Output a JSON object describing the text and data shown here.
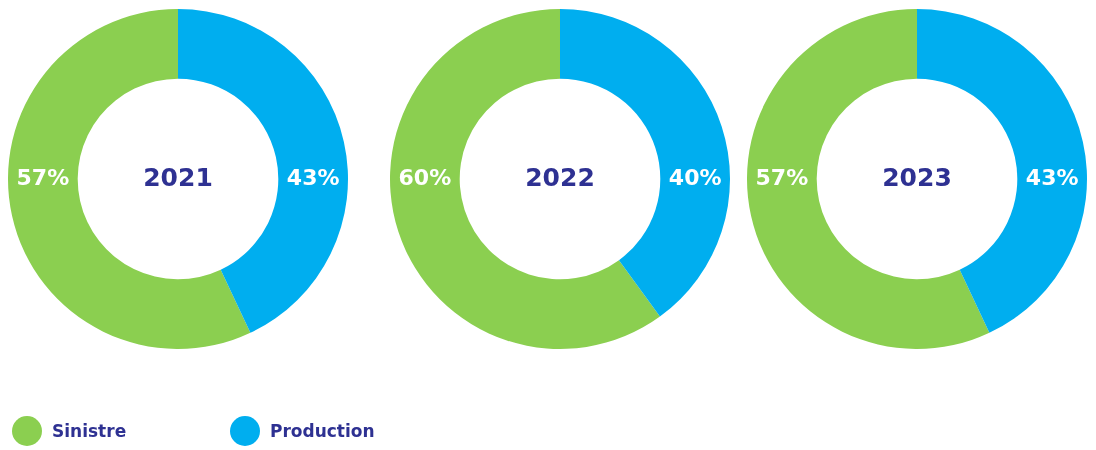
{
  "chart_data": [
    {
      "type": "donut",
      "title": "2021",
      "categories": [
        "Sinistre",
        "Production"
      ],
      "values": [
        57,
        43
      ],
      "colors": [
        "#8bcf50",
        "#00aeef"
      ],
      "value_labels": [
        "57%",
        "43%"
      ],
      "legend": "bottom left"
    },
    {
      "type": "donut",
      "title": "2022",
      "categories": [
        null,
        null
      ],
      "values": [
        60,
        40
      ],
      "colors": [
        "#8bcf50",
        "#00aeef"
      ],
      "value_labels": [
        "60%",
        "40%"
      ]
    },
    {
      "type": "donut",
      "title": "2023",
      "categories": [
        null,
        null
      ],
      "values": [
        57,
        43
      ],
      "colors": [
        "#8bcf50",
        "#00aeef"
      ],
      "value_labels": [
        "57%",
        "43%"
      ]
    }
  ]
}
